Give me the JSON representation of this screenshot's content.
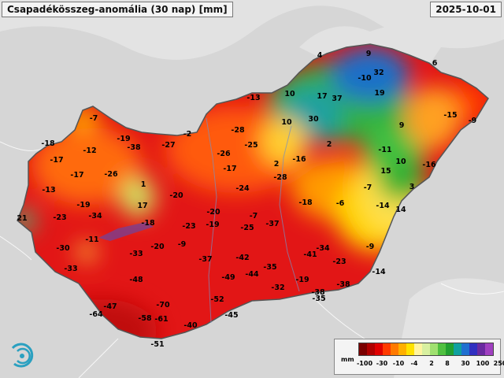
{
  "header": {
    "title": "Csapadékösszeg-anomália (30 nap) [mm]",
    "date": "2025-10-01"
  },
  "legend": {
    "unit": "mm",
    "colors": [
      "#7a0000",
      "#b00000",
      "#e00000",
      "#ff3a00",
      "#ff7a00",
      "#ffb000",
      "#ffe200",
      "#fff4a0",
      "#d8f0a0",
      "#a0e070",
      "#50c040",
      "#22a030",
      "#10a0a0",
      "#2070d0",
      "#3030c0",
      "#6a2aa0",
      "#a040c0"
    ],
    "ticks": [
      "-100",
      "-30",
      "-10",
      "-4",
      "2",
      "8",
      "30",
      "100",
      "250"
    ]
  },
  "stations": [
    {
      "v": "4"
    },
    {
      "v": "9"
    },
    {
      "v": "6"
    },
    {
      "v": "-10"
    },
    {
      "v": "32"
    },
    {
      "v": "10"
    },
    {
      "v": "17"
    },
    {
      "v": "37"
    },
    {
      "v": "19"
    },
    {
      "v": "-13"
    },
    {
      "v": "-15"
    },
    {
      "v": "-9"
    },
    {
      "v": "10"
    },
    {
      "v": "30"
    },
    {
      "v": "9"
    },
    {
      "v": "-7"
    },
    {
      "v": "-18"
    },
    {
      "v": "-19"
    },
    {
      "v": "-38"
    },
    {
      "v": "-27"
    },
    {
      "v": "-2"
    },
    {
      "v": "-28"
    },
    {
      "v": "-26"
    },
    {
      "v": "-25"
    },
    {
      "v": "2"
    },
    {
      "v": "-11"
    },
    {
      "v": "-17"
    },
    {
      "v": "-12"
    },
    {
      "v": "2"
    },
    {
      "v": "-16"
    },
    {
      "v": "10"
    },
    {
      "v": "-16"
    },
    {
      "v": "-17"
    },
    {
      "v": "-17"
    },
    {
      "v": "-26"
    },
    {
      "v": "-28"
    },
    {
      "v": "15"
    },
    {
      "v": "-13"
    },
    {
      "v": "1"
    },
    {
      "v": "-24"
    },
    {
      "v": "-7"
    },
    {
      "v": "3"
    },
    {
      "v": "-20"
    },
    {
      "v": "-18"
    },
    {
      "v": "-6"
    },
    {
      "v": "-14"
    },
    {
      "v": "21"
    },
    {
      "v": "-23"
    },
    {
      "v": "-34"
    },
    {
      "v": "-19"
    },
    {
      "v": "17"
    },
    {
      "v": "-20"
    },
    {
      "v": "-7"
    },
    {
      "v": "14"
    },
    {
      "v": "-18"
    },
    {
      "v": "-23"
    },
    {
      "v": "-19"
    },
    {
      "v": "-25"
    },
    {
      "v": "-37"
    },
    {
      "v": "-11"
    },
    {
      "v": "-30"
    },
    {
      "v": "-33"
    },
    {
      "v": "-20"
    },
    {
      "v": "-9"
    },
    {
      "v": "-34"
    },
    {
      "v": "-9"
    },
    {
      "v": "-37"
    },
    {
      "v": "-42"
    },
    {
      "v": "-41"
    },
    {
      "v": "-23"
    },
    {
      "v": "-33"
    },
    {
      "v": "-35"
    },
    {
      "v": "-14"
    },
    {
      "v": "-48"
    },
    {
      "v": "-49"
    },
    {
      "v": "-44"
    },
    {
      "v": "-19"
    },
    {
      "v": "-38"
    },
    {
      "v": "-32"
    },
    {
      "v": "-38"
    },
    {
      "v": "-47"
    },
    {
      "v": "-70"
    },
    {
      "v": "-52"
    },
    {
      "v": "-35"
    },
    {
      "v": "-64"
    },
    {
      "v": "-58"
    },
    {
      "v": "-61"
    },
    {
      "v": "-45"
    },
    {
      "v": "-40"
    },
    {
      "v": "-51"
    }
  ]
}
